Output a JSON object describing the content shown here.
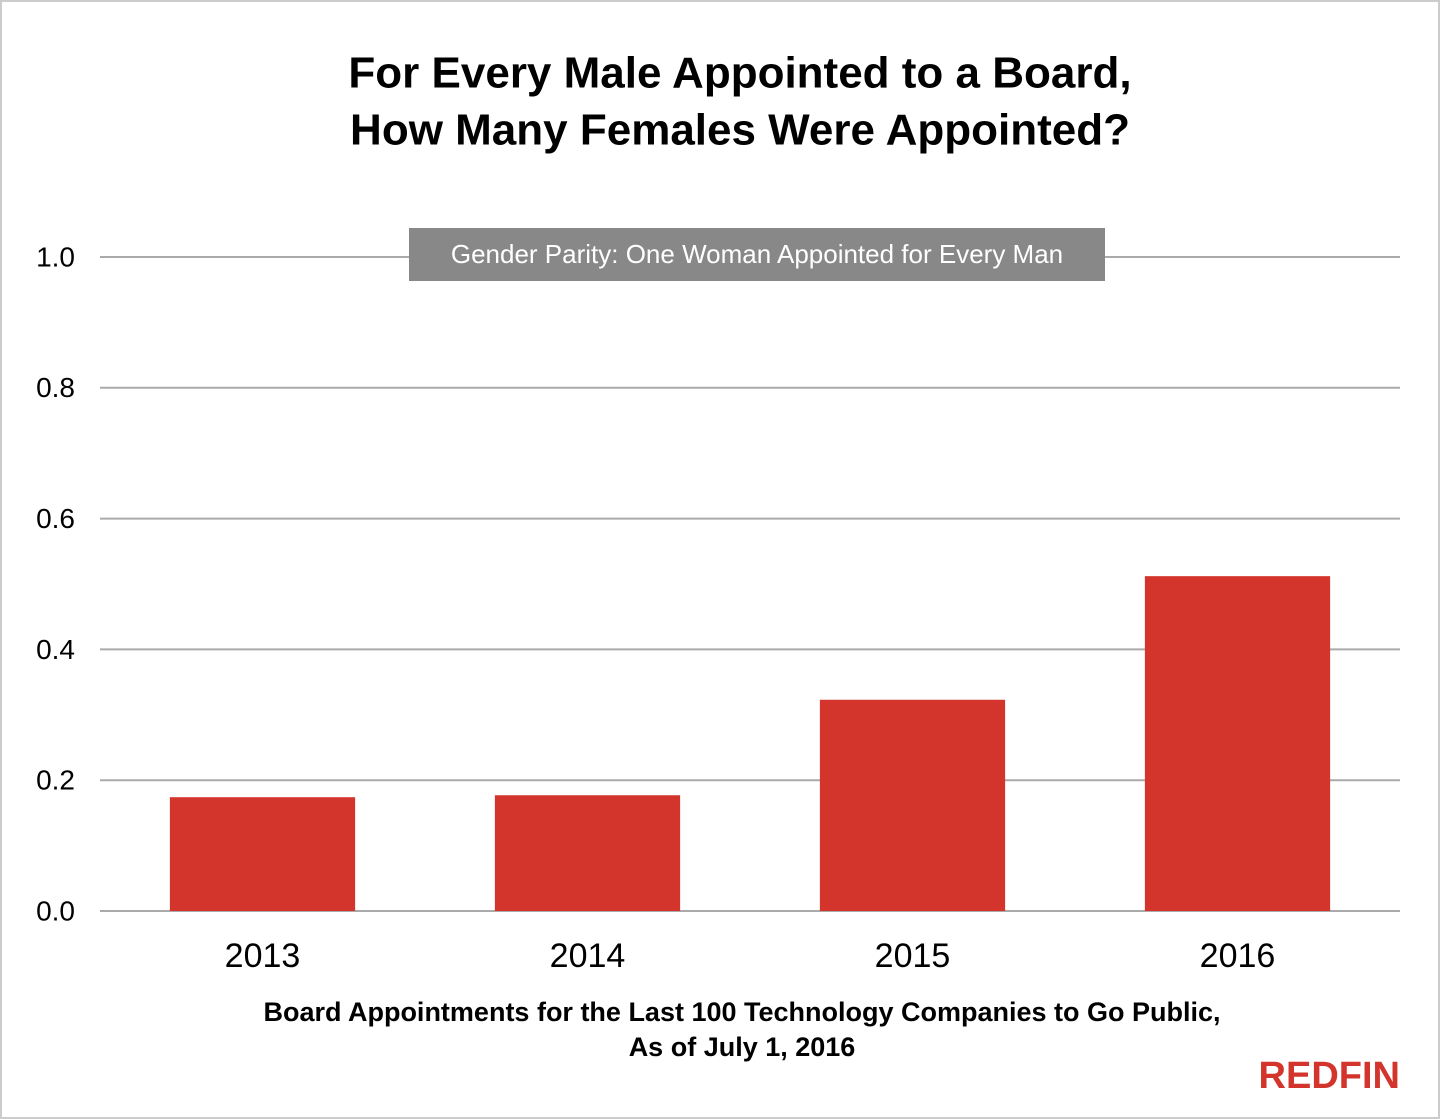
{
  "chart_data": {
    "type": "bar",
    "title": [
      "For Every Male Appointed to a Board,",
      "How Many Females Were Appointed?"
    ],
    "x_label": [
      "Board Appointments for the Last 100 Technology Companies to Go Public,",
      "As of July 1, 2016"
    ],
    "annotation": "Gender Parity: One Woman Appointed for Every Man",
    "logo": "REDFIN",
    "categories": [
      "2013",
      "2014",
      "2015",
      "2016"
    ],
    "values": [
      0.174,
      0.177,
      0.323,
      0.512
    ],
    "color": "#d3352d",
    "ylim": [
      0,
      1
    ],
    "yticks": [
      {
        "value": 0,
        "label": "0.0"
      },
      0.2,
      0.4,
      0.6,
      0.8,
      {
        "value": 1,
        "label": "1.0"
      }
    ],
    "grid": true
  }
}
